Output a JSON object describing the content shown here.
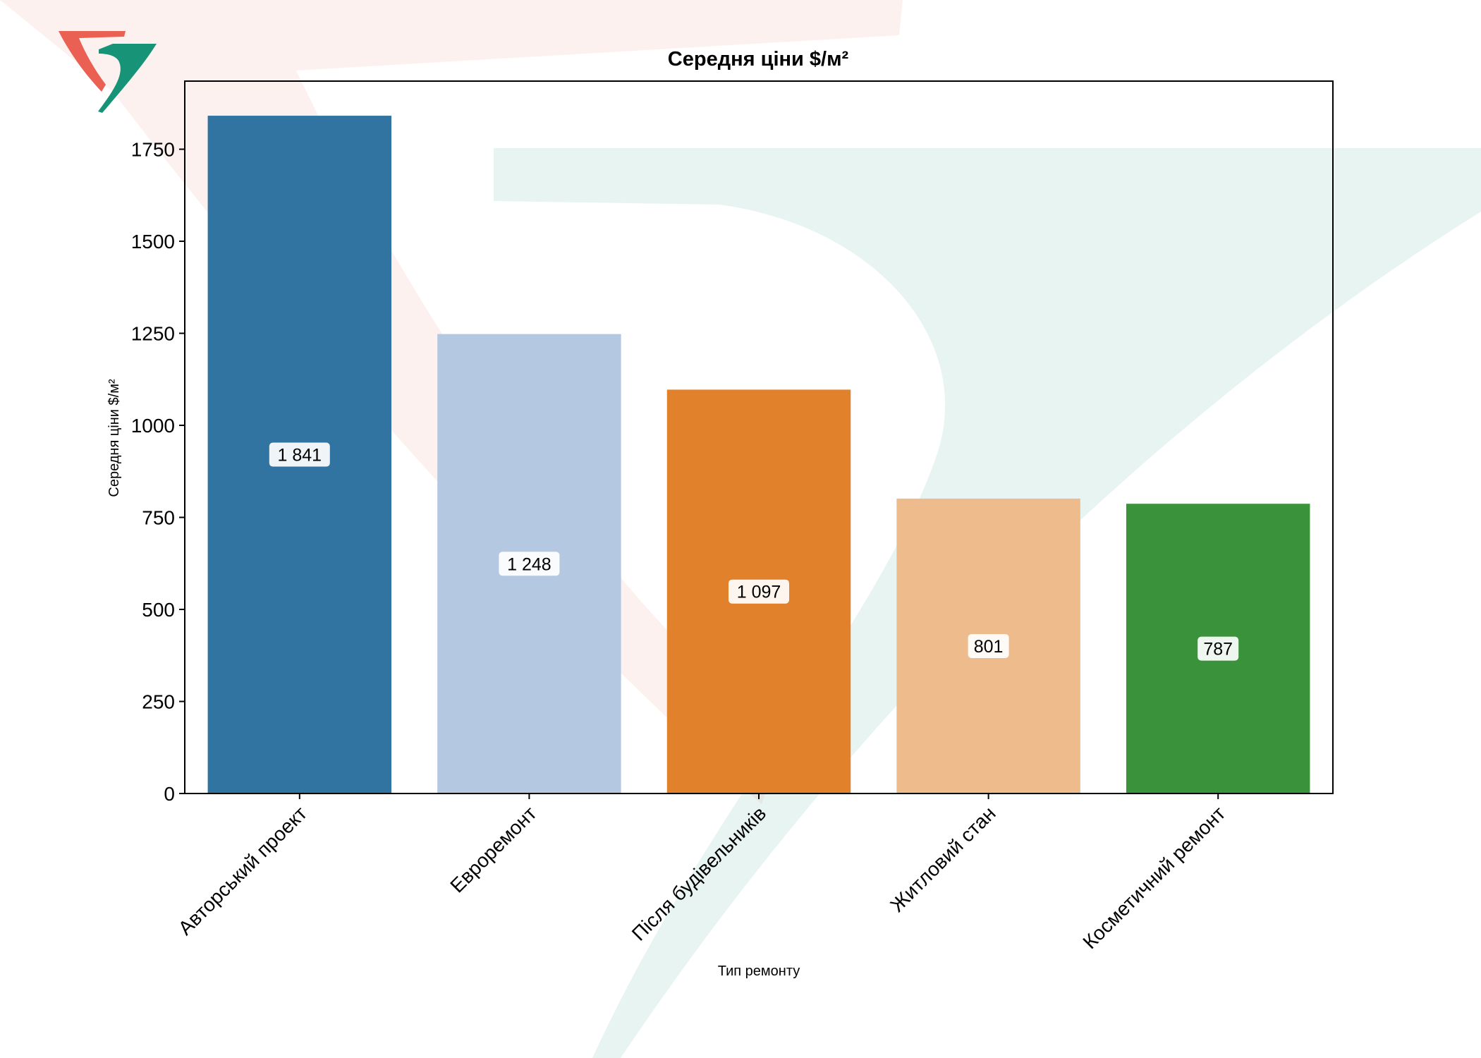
{
  "chart_data": {
    "type": "bar",
    "title": "Середня ціни $/м²",
    "xlabel": "Тип ремонту",
    "ylabel": "Середня ціни $/м²",
    "categories": [
      "Авторський проект",
      "Евроремонт",
      "Після будівельників",
      "Житловий стан",
      "Косметичний ремонт"
    ],
    "values": [
      1841,
      1248,
      1097,
      801,
      787
    ],
    "value_labels": [
      "1 841",
      "1 248",
      "1 097",
      "801",
      "787"
    ],
    "bar_colors": [
      "#3274a1",
      "#b5c8e2",
      "#e1812c",
      "#eebc8c",
      "#3a923a"
    ],
    "ylim": [
      0,
      1935
    ],
    "yticks": [
      0,
      250,
      500,
      750,
      1000,
      1250,
      1500,
      1750
    ],
    "grid": false,
    "legend": "none"
  },
  "watermark": {
    "logo_colors": [
      "#ea6052",
      "#179478"
    ]
  }
}
